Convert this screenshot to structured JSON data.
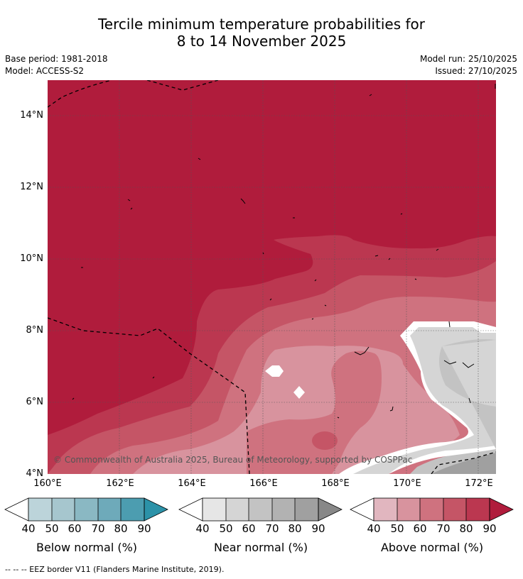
{
  "title": {
    "line1": "Tercile minimum temperature probabilities for",
    "line2": "8 to 14 November 2025"
  },
  "info": {
    "base_period": "Base period: 1981-2018",
    "model": "Model: ACCESS-S2",
    "model_run": "Model run: 25/10/2025",
    "issued": "Issued: 27/10/2025"
  },
  "map": {
    "lat_labels": [
      "14°N",
      "12°N",
      "10°N",
      "8°N",
      "6°N",
      "4°N"
    ],
    "lon_labels": [
      "160°E",
      "162°E",
      "164°E",
      "166°E",
      "168°E",
      "170°E",
      "172°E"
    ],
    "copyright": "© Commonwealth of Australia 2025, Bureau of Meteorology, supported by COSPPac"
  },
  "legend": {
    "below": {
      "label": "Below normal (%)",
      "ticks": [
        "40",
        "50",
        "60",
        "70",
        "80",
        "90"
      ],
      "colors": [
        "#ffffff",
        "#bcd4da",
        "#a6c6ce",
        "#8ab8c3",
        "#6eaaba",
        "#4c9db0",
        "#2c92a8"
      ]
    },
    "near": {
      "label": "Near normal (%)",
      "ticks": [
        "40",
        "50",
        "60",
        "70",
        "80",
        "90"
      ],
      "colors": [
        "#ffffff",
        "#e6e6e6",
        "#d5d5d5",
        "#c3c3c3",
        "#b2b2b2",
        "#a0a0a0",
        "#888888"
      ]
    },
    "above": {
      "label": "Above normal (%)",
      "ticks": [
        "40",
        "50",
        "60",
        "70",
        "80",
        "90"
      ],
      "colors": [
        "#ffffff",
        "#e1b6bf",
        "#d8939e",
        "#cf727f",
        "#c55566",
        "#bb3750",
        "#b01c3c"
      ]
    }
  },
  "footer": "--  --  -- EEZ border V11 (Flanders Marine Institute, 2019)."
}
